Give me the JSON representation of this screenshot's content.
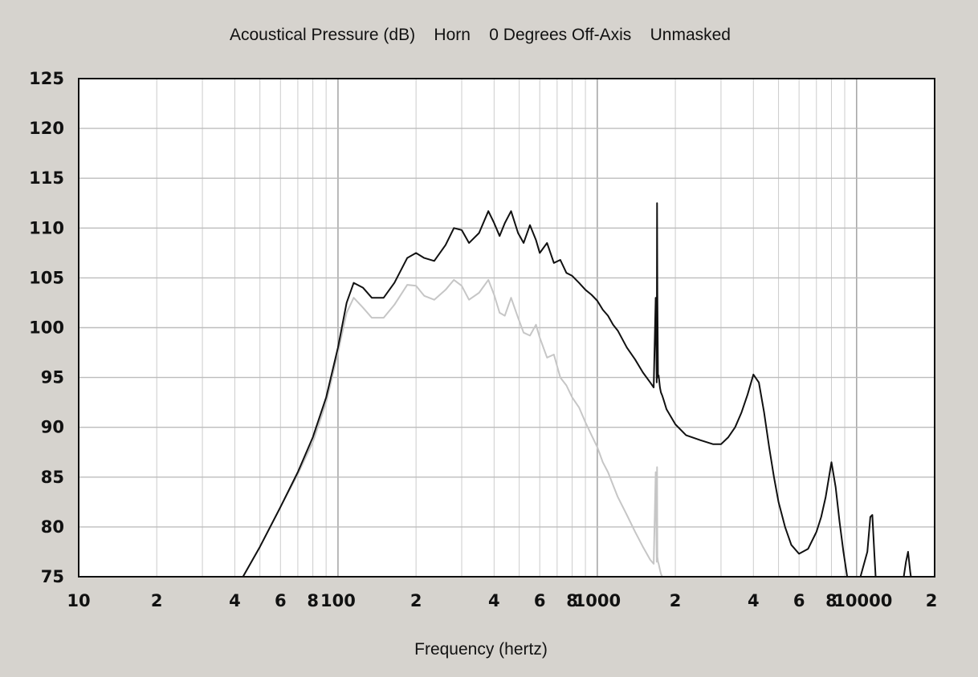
{
  "chart_data": {
    "type": "line",
    "title": "Acoustical Pressure (dB)    Horn    0 Degrees Off-Axis    Unmasked",
    "xlabel": "Frequency (hertz)",
    "ylabel": "",
    "xscale": "log",
    "xlim": [
      10,
      20000
    ],
    "ylim": [
      75,
      125
    ],
    "grid": true,
    "y_ticks": [
      "125",
      "120",
      "115",
      "110",
      "105",
      "100",
      "95",
      "90",
      "85",
      "80",
      "75"
    ],
    "x_ticks": [
      {
        "value": 10,
        "label": "10"
      },
      {
        "value": 20,
        "label": "2"
      },
      {
        "value": 40,
        "label": "4"
      },
      {
        "value": 60,
        "label": "6"
      },
      {
        "value": 80,
        "label": "8"
      },
      {
        "value": 100,
        "label": "100"
      },
      {
        "value": 200,
        "label": "2"
      },
      {
        "value": 400,
        "label": "4"
      },
      {
        "value": 600,
        "label": "6"
      },
      {
        "value": 800,
        "label": "8"
      },
      {
        "value": 1000,
        "label": "1000"
      },
      {
        "value": 2000,
        "label": "2"
      },
      {
        "value": 4000,
        "label": "4"
      },
      {
        "value": 6000,
        "label": "6"
      },
      {
        "value": 8000,
        "label": "8"
      },
      {
        "value": 10000,
        "label": "10000"
      },
      {
        "value": 20000,
        "label": "2"
      }
    ],
    "series": [
      {
        "color": "#111111",
        "x": [
          43,
          50,
          60,
          70,
          80,
          90,
          100,
          108,
          115,
          125,
          135,
          150,
          165,
          185,
          200,
          215,
          235,
          260,
          280,
          300,
          320,
          350,
          380,
          400,
          420,
          440,
          465,
          495,
          520,
          550,
          580,
          600,
          640,
          680,
          720,
          760,
          800,
          850,
          900,
          950,
          1000,
          1050,
          1100,
          1150,
          1200,
          1300,
          1400,
          1500,
          1600,
          1650,
          1680,
          1695,
          1700,
          1705,
          1715,
          1725,
          1745,
          1760,
          1780,
          1800,
          1850,
          2000,
          2200,
          2500,
          2800,
          3000,
          3200,
          3400,
          3600,
          3800,
          4000,
          4200,
          4400,
          4600,
          4800,
          5000,
          5300,
          5600,
          6000,
          6500,
          7000,
          7300,
          7600,
          8000,
          8300,
          8600,
          8900,
          9200,
          9500,
          9800,
          10000,
          10100,
          11000,
          11300,
          11500,
          11700,
          11900,
          12200,
          15000,
          15500,
          15800,
          16100,
          16400,
          16800
        ],
        "y": [
          75,
          78,
          82,
          85.5,
          89,
          93,
          98,
          102.5,
          104.5,
          104,
          103,
          103,
          104.5,
          107,
          107.5,
          107,
          106.7,
          108.3,
          110,
          109.8,
          108.5,
          109.5,
          111.7,
          110.5,
          109.2,
          110.5,
          111.7,
          109.5,
          108.5,
          110.3,
          108.8,
          107.5,
          108.5,
          106.5,
          106.8,
          105.5,
          105.2,
          104.5,
          103.8,
          103.3,
          102.7,
          101.8,
          101.2,
          100.3,
          99.7,
          98,
          96.8,
          95.5,
          94.5,
          94,
          103,
          94.5,
          112.5,
          103.5,
          95,
          95.2,
          94,
          93.5,
          93.2,
          92.8,
          91.8,
          90.3,
          89.2,
          88.7,
          88.3,
          88.3,
          89,
          90,
          91.5,
          93.3,
          95.3,
          94.5,
          91.5,
          88,
          85,
          82.5,
          80,
          78.2,
          77.3,
          77.8,
          79.5,
          81,
          83,
          86.5,
          84,
          80.5,
          77.5,
          75,
          74,
          74,
          74,
          74,
          77.5,
          81,
          81.2,
          77.5,
          74,
          74,
          74,
          76.5,
          77.5,
          75.5,
          74,
          74
        ]
      },
      {
        "color": "#c6c6c6",
        "x": [
          43,
          50,
          60,
          70,
          80,
          90,
          100,
          108,
          115,
          125,
          135,
          150,
          165,
          185,
          200,
          215,
          235,
          260,
          280,
          300,
          320,
          350,
          380,
          400,
          420,
          440,
          465,
          495,
          520,
          550,
          580,
          600,
          640,
          680,
          720,
          760,
          800,
          850,
          900,
          950,
          1000,
          1050,
          1100,
          1150,
          1200,
          1300,
          1400,
          1500,
          1600,
          1650,
          1680,
          1695,
          1700,
          1705,
          1715,
          1725,
          1745,
          1760,
          1780,
          1800,
          1850
        ],
        "y": [
          75,
          78,
          82,
          85.3,
          88.5,
          92.5,
          97.5,
          101.5,
          103,
          102,
          101,
          101,
          102.3,
          104.3,
          104.2,
          103.2,
          102.8,
          103.8,
          104.8,
          104.2,
          102.8,
          103.5,
          104.8,
          103.3,
          101.5,
          101.2,
          103,
          101,
          99.5,
          99.2,
          100.3,
          99,
          97,
          97.3,
          95,
          94.2,
          93,
          92,
          90.5,
          89.2,
          88,
          86.5,
          85.5,
          84.2,
          83,
          81.2,
          79.5,
          78,
          76.7,
          76.3,
          85.5,
          76.5,
          86,
          77,
          76.5,
          76.3,
          75.7,
          75.3,
          75,
          75,
          74
        ]
      }
    ]
  }
}
